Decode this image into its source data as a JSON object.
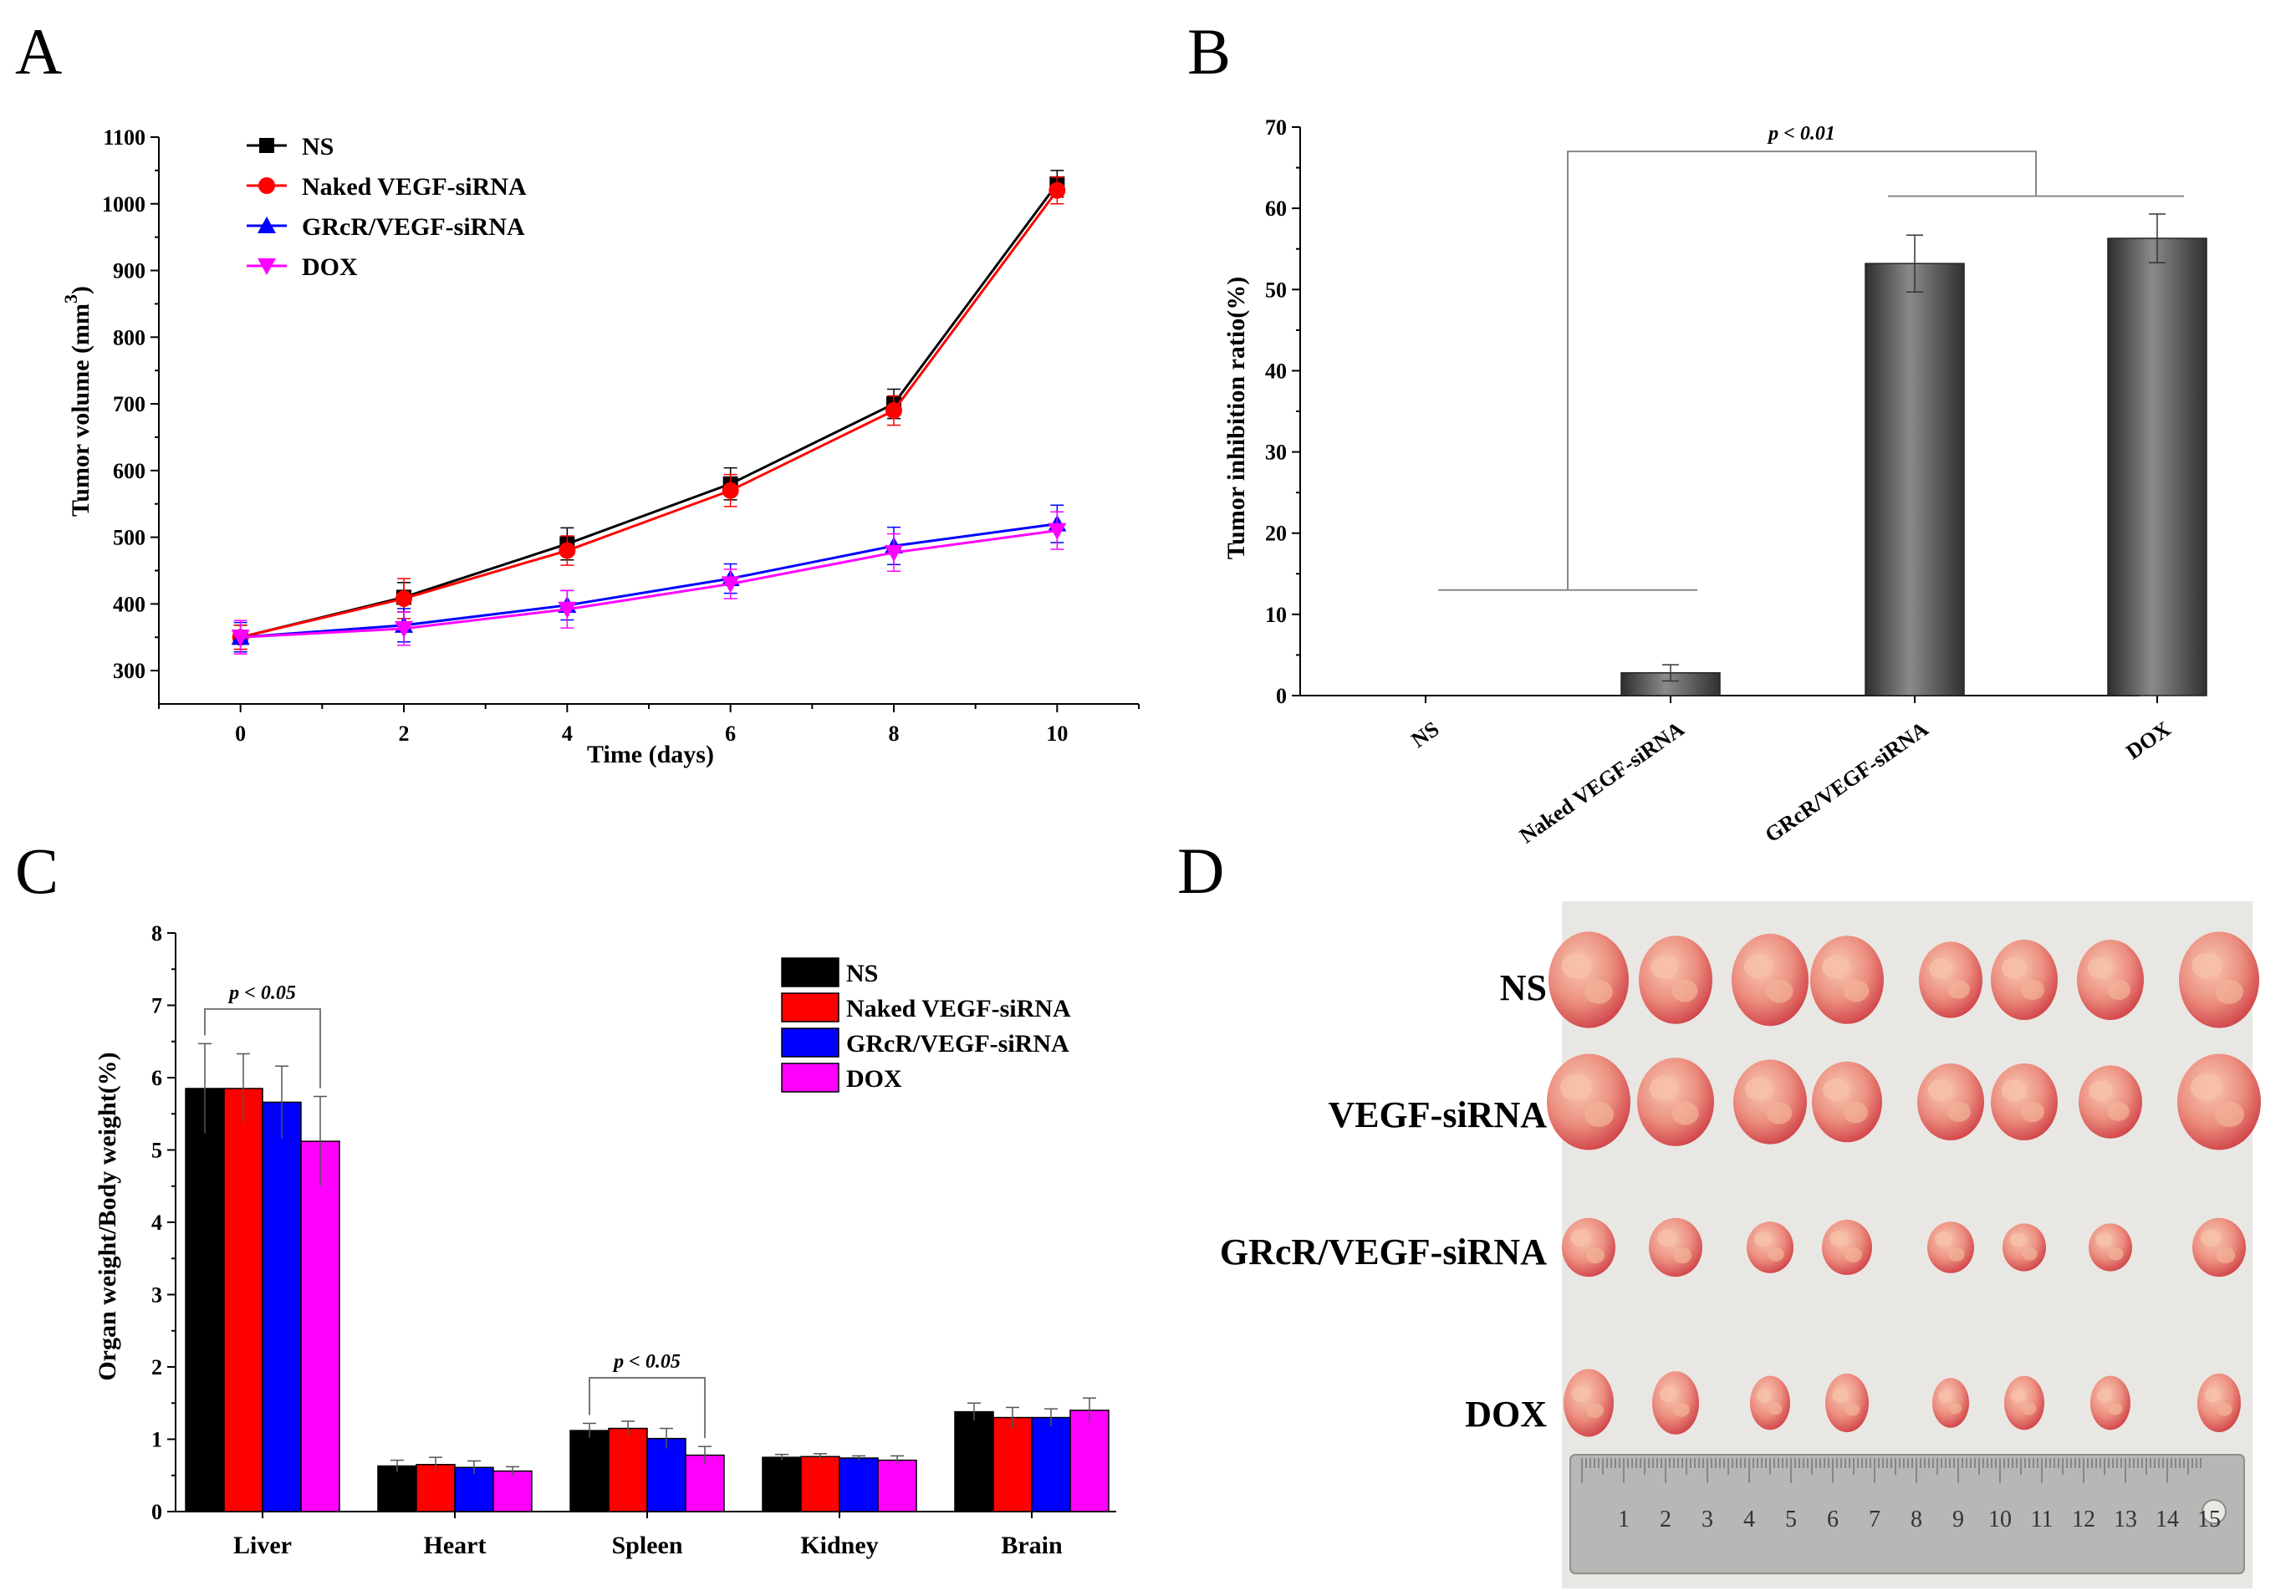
{
  "panel_labels": {
    "a": "A",
    "b": "B",
    "c": "C",
    "d": "D"
  },
  "colors": {
    "ns": "#000000",
    "naked": "#ff0000",
    "grcr": "#0000ff",
    "dox": "#ff00ff",
    "bar_gray": "#5a5a5a",
    "paper": "#e9e7e4",
    "ruler": "#b8b8b6"
  },
  "chart_data": [
    {
      "id": "A",
      "type": "line",
      "xlabel": "Time (days)",
      "ylabel": "Tumor volume (mm",
      "ylabel_sup": "3",
      "ylabel_end": ")",
      "xlim": [
        -1,
        11
      ],
      "ylim": [
        250,
        1100
      ],
      "xticks": [
        0,
        2,
        4,
        6,
        8,
        10
      ],
      "yticks": [
        300,
        400,
        500,
        600,
        700,
        800,
        900,
        1000,
        1100
      ],
      "x": [
        0,
        2,
        4,
        6,
        8,
        10
      ],
      "series": [
        {
          "name": "NS",
          "marker": "square",
          "color": "#000000",
          "values": [
            350,
            410,
            490,
            580,
            700,
            1030
          ],
          "err": [
            18,
            22,
            24,
            24,
            22,
            20
          ]
        },
        {
          "name": "Naked VEGF-siRNA",
          "marker": "circle",
          "color": "#ff0000",
          "values": [
            350,
            408,
            480,
            570,
            690,
            1020
          ],
          "err": [
            18,
            30,
            22,
            24,
            22,
            20
          ]
        },
        {
          "name": "GRcR/VEGF-siRNA",
          "marker": "triangle-up",
          "color": "#0000ff",
          "values": [
            350,
            368,
            398,
            438,
            487,
            520
          ],
          "err": [
            22,
            25,
            22,
            22,
            28,
            28
          ]
        },
        {
          "name": "DOX",
          "marker": "triangle-down",
          "color": "#ff00ff",
          "values": [
            350,
            363,
            392,
            430,
            477,
            510
          ],
          "err": [
            25,
            25,
            28,
            22,
            28,
            28
          ]
        }
      ]
    },
    {
      "id": "B",
      "type": "bar",
      "xlabel": "",
      "ylabel": "Tumor inhibition ratio(%)",
      "ylim": [
        0,
        70
      ],
      "yticks": [
        0,
        10,
        20,
        30,
        40,
        50,
        60,
        70
      ],
      "categories": [
        "NS",
        "Naked VEGF-siRNA",
        "GRcR/VEGF-siRNA",
        "DOX"
      ],
      "values": [
        0,
        2.8,
        53.2,
        56.3
      ],
      "err": [
        0,
        1.0,
        3.5,
        3.0
      ],
      "annotation": "p < 0.01"
    },
    {
      "id": "C",
      "type": "bar",
      "xlabel": "",
      "ylabel": "Organ weight/Body weight(%)",
      "ylim": [
        0,
        8
      ],
      "yticks": [
        0,
        1,
        2,
        3,
        4,
        5,
        6,
        7,
        8
      ],
      "categories": [
        "Liver",
        "Heart",
        "Spleen",
        "Kidney",
        "Brain"
      ],
      "series": [
        {
          "name": "NS",
          "color": "#000000",
          "values": [
            5.85,
            0.63,
            1.12,
            0.75,
            1.38
          ],
          "err": [
            0.62,
            0.08,
            0.1,
            0.04,
            0.12
          ]
        },
        {
          "name": "Naked VEGF-siRNA",
          "color": "#ff0000",
          "values": [
            5.85,
            0.65,
            1.15,
            0.76,
            1.3
          ],
          "err": [
            0.48,
            0.1,
            0.1,
            0.04,
            0.14
          ]
        },
        {
          "name": "GRcR/VEGF-siRNA",
          "color": "#0000ff",
          "values": [
            5.66,
            0.61,
            1.01,
            0.74,
            1.3
          ],
          "err": [
            0.5,
            0.09,
            0.14,
            0.03,
            0.12
          ]
        },
        {
          "name": "DOX",
          "color": "#ff00ff",
          "values": [
            5.12,
            0.56,
            0.78,
            0.71,
            1.4
          ],
          "err": [
            0.62,
            0.06,
            0.12,
            0.06,
            0.17
          ]
        }
      ],
      "annotations": [
        {
          "text": "p < 0.05",
          "category": "Liver"
        },
        {
          "text": "p < 0.05",
          "category": "Spleen"
        }
      ]
    }
  ],
  "panel_d": {
    "row_labels": [
      "NS",
      "VEGF-siRNA",
      "GRcR/VEGF-siRNA",
      "DOX"
    ],
    "ruler_numbers": [
      "1",
      "2",
      "3",
      "4",
      "5",
      "6",
      "7",
      "8",
      "9",
      "10",
      "11",
      "12",
      "13",
      "14",
      "15"
    ]
  }
}
